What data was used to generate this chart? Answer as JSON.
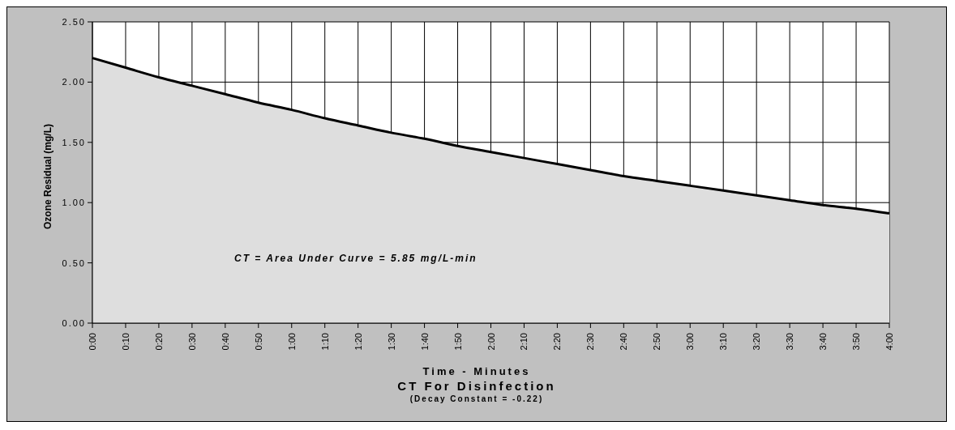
{
  "chart_data": {
    "type": "area",
    "title": "CT For Disinfection",
    "subtitle": "(Decay Constant = -0.22)",
    "xlabel": "Time - Minutes",
    "ylabel": "Ozone Residual (mg/L)",
    "annotations": [
      "CT = Area Under Curve = 5.85 mg/L-min"
    ],
    "categories": [
      "0:00",
      "0:10",
      "0:20",
      "0:30",
      "0:40",
      "0:50",
      "1:00",
      "1:10",
      "1:20",
      "1:30",
      "1:40",
      "1:50",
      "2:00",
      "2:10",
      "2:20",
      "2:30",
      "2:40",
      "2:50",
      "3:00",
      "3:10",
      "3:20",
      "3:30",
      "3:40",
      "3:50",
      "4:00"
    ],
    "series": [
      {
        "color": "#000000",
        "values": [
          2.2,
          2.12,
          2.04,
          1.97,
          1.9,
          1.83,
          1.77,
          1.7,
          1.64,
          1.58,
          1.53,
          1.47,
          1.42,
          1.37,
          1.32,
          1.27,
          1.22,
          1.18,
          1.14,
          1.1,
          1.06,
          1.02,
          0.98,
          0.95,
          0.91
        ]
      }
    ],
    "ylim": [
      0,
      2.5
    ],
    "yticks": [
      {
        "value": 0,
        "label": "0.00"
      },
      {
        "value": 0.5,
        "label": "0.50"
      },
      {
        "value": 1,
        "label": "1.00"
      },
      {
        "value": 1.5,
        "label": "1.50"
      },
      {
        "value": 2,
        "label": "2.00"
      },
      {
        "value": 2.5,
        "label": "2.50"
      }
    ],
    "grid": true,
    "line_style": "solid",
    "marker": "none"
  }
}
